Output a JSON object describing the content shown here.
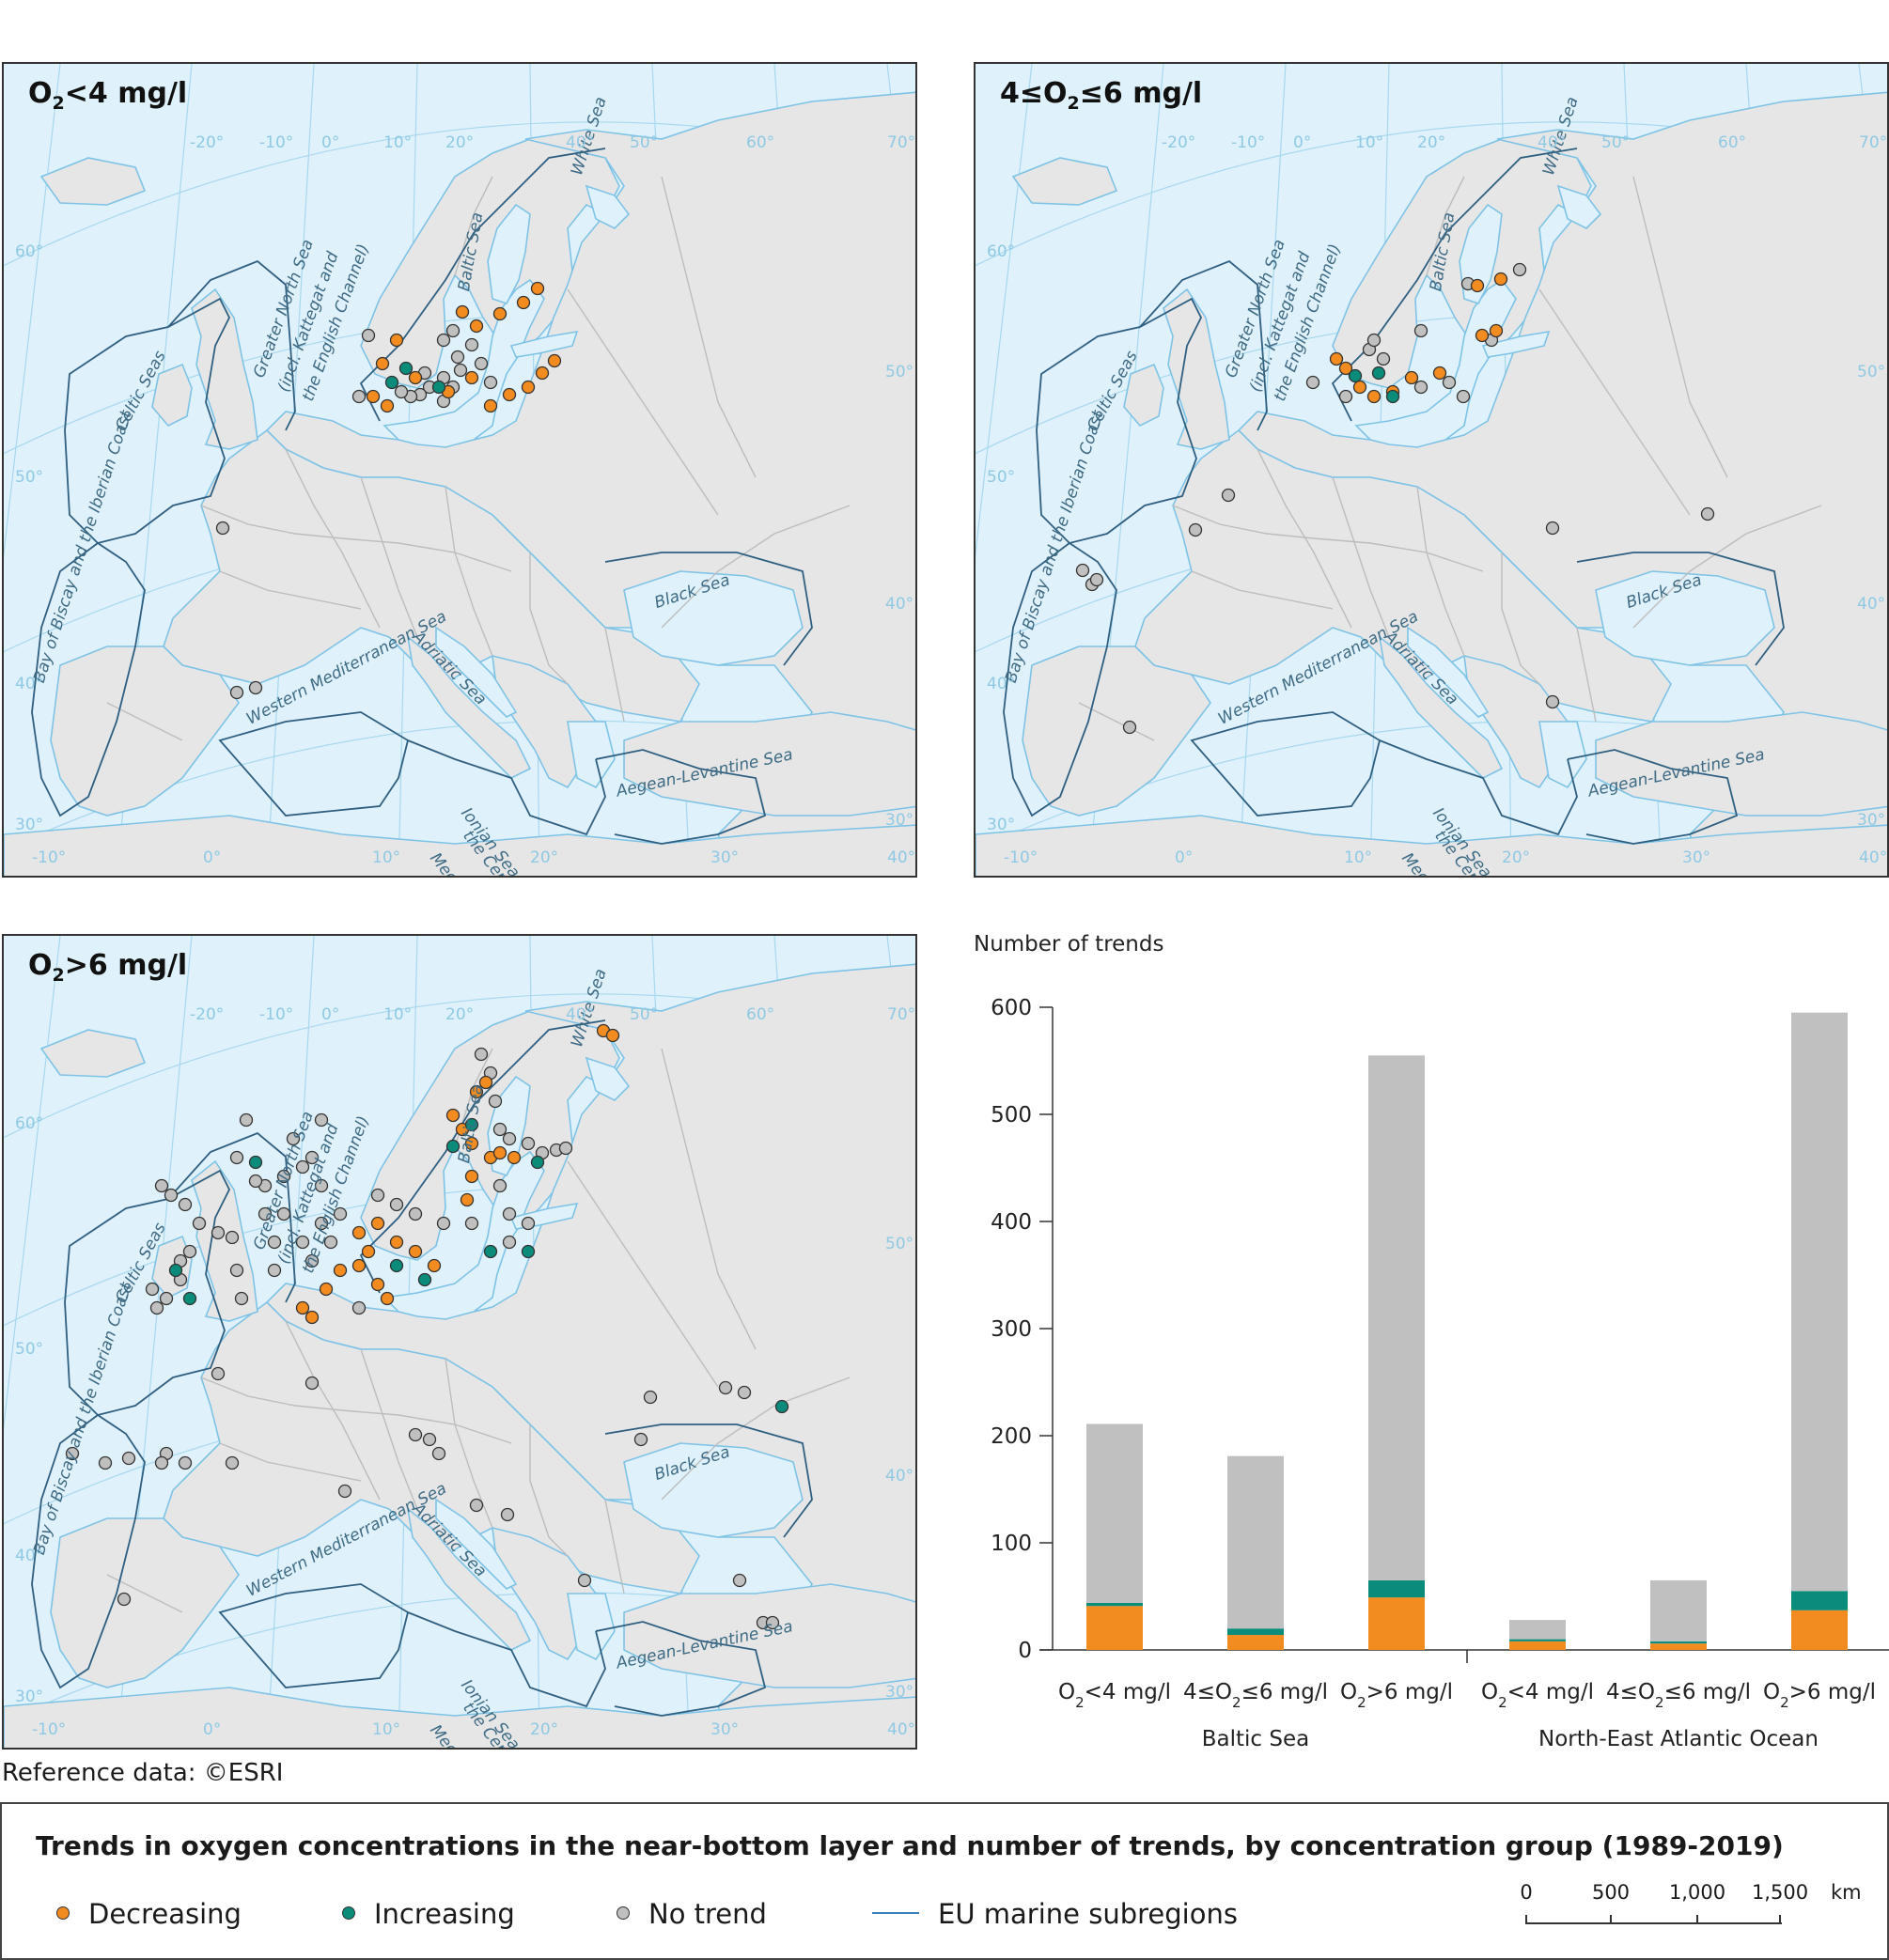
{
  "maps": [
    {
      "id": "map-low",
      "title_main": "O",
      "title_sub": "2",
      "title_rest": "<4 mg/l",
      "points": {
        "decreasing": [
          [
            560,
            410
          ],
          [
            575,
            395
          ],
          [
            588,
            382
          ],
          [
            520,
            430
          ],
          [
            540,
            418
          ],
          [
            505,
            345
          ],
          [
            530,
            332
          ],
          [
            555,
            320
          ],
          [
            570,
            305
          ],
          [
            490,
            330
          ],
          [
            405,
            385
          ],
          [
            395,
            420
          ],
          [
            410,
            430
          ],
          [
            420,
            360
          ],
          [
            440,
            400
          ],
          [
            475,
            415
          ],
          [
            500,
            400
          ]
        ],
        "increasing": [
          [
            430,
            390
          ],
          [
            465,
            410
          ],
          [
            415,
            405
          ]
        ],
        "no_trend": [
          [
            390,
            355
          ],
          [
            480,
            350
          ],
          [
            470,
            360
          ],
          [
            500,
            365
          ],
          [
            455,
            410
          ],
          [
            445,
            418
          ],
          [
            435,
            420
          ],
          [
            450,
            395
          ],
          [
            470,
            400
          ],
          [
            488,
            392
          ],
          [
            520,
            405
          ],
          [
            510,
            385
          ],
          [
            485,
            378
          ],
          [
            480,
            410
          ],
          [
            470,
            425
          ],
          [
            235,
            560
          ],
          [
            250,
            735
          ],
          [
            270,
            730
          ],
          [
            425,
            415
          ],
          [
            380,
            420
          ]
        ]
      }
    },
    {
      "id": "map-mid",
      "title_main": "4≤O",
      "title_sub": "2",
      "title_rest": "≤6 mg/l",
      "points": {
        "decreasing": [
          [
            1430,
            390
          ],
          [
            1445,
            410
          ],
          [
            1460,
            420
          ],
          [
            1420,
            380
          ],
          [
            1480,
            415
          ],
          [
            1500,
            400
          ],
          [
            1530,
            395
          ],
          [
            1575,
            355
          ],
          [
            1590,
            350
          ],
          [
            1570,
            302
          ],
          [
            1595,
            295
          ]
        ],
        "increasing": [
          [
            1440,
            398
          ],
          [
            1465,
            395
          ],
          [
            1480,
            420
          ]
        ],
        "no_trend": [
          [
            1430,
            420
          ],
          [
            1455,
            370
          ],
          [
            1460,
            360
          ],
          [
            1470,
            380
          ],
          [
            1510,
            410
          ],
          [
            1540,
            405
          ],
          [
            1555,
            420
          ],
          [
            1560,
            300
          ],
          [
            1615,
            285
          ],
          [
            1395,
            405
          ],
          [
            1510,
            350
          ],
          [
            1585,
            360
          ],
          [
            1305,
            525
          ],
          [
            1270,
            562
          ],
          [
            1160,
            620
          ],
          [
            1150,
            605
          ],
          [
            1165,
            615
          ],
          [
            1200,
            772
          ],
          [
            1650,
            560
          ],
          [
            1650,
            745
          ],
          [
            1815,
            545
          ]
        ]
      }
    },
    {
      "id": "map-high",
      "title_main": "O",
      "title_sub": "2",
      "title_rest": ">6 mg/l",
      "points": {
        "decreasing": [
          [
            480,
            1185
          ],
          [
            490,
            1200
          ],
          [
            500,
            1215
          ],
          [
            505,
            1160
          ],
          [
            515,
            1150
          ],
          [
            520,
            1230
          ],
          [
            530,
            1225
          ],
          [
            500,
            1250
          ],
          [
            495,
            1275
          ],
          [
            380,
            1310
          ],
          [
            400,
            1300
          ],
          [
            420,
            1320
          ],
          [
            440,
            1330
          ],
          [
            460,
            1345
          ],
          [
            380,
            1345
          ],
          [
            400,
            1365
          ],
          [
            410,
            1380
          ],
          [
            330,
            1400
          ],
          [
            320,
            1390
          ],
          [
            345,
            1370
          ],
          [
            360,
            1350
          ],
          [
            640,
            1095
          ],
          [
            650,
            1100
          ],
          [
            545,
            1230
          ],
          [
            390,
            1330
          ]
        ],
        "increasing": [
          [
            480,
            1218
          ],
          [
            500,
            1195
          ],
          [
            570,
            1235
          ],
          [
            420,
            1345
          ],
          [
            450,
            1360
          ],
          [
            270,
            1235
          ],
          [
            200,
            1380
          ],
          [
            185,
            1350
          ],
          [
            830,
            1495
          ],
          [
            520,
            1330
          ],
          [
            560,
            1330
          ]
        ],
        "no_trend": [
          [
            510,
            1120
          ],
          [
            520,
            1140
          ],
          [
            525,
            1170
          ],
          [
            530,
            1200
          ],
          [
            540,
            1210
          ],
          [
            560,
            1215
          ],
          [
            575,
            1225
          ],
          [
            590,
            1222
          ],
          [
            600,
            1220
          ],
          [
            530,
            1260
          ],
          [
            540,
            1290
          ],
          [
            560,
            1300
          ],
          [
            540,
            1320
          ],
          [
            500,
            1300
          ],
          [
            470,
            1300
          ],
          [
            440,
            1290
          ],
          [
            420,
            1280
          ],
          [
            400,
            1270
          ],
          [
            360,
            1290
          ],
          [
            340,
            1260
          ],
          [
            320,
            1240
          ],
          [
            300,
            1250
          ],
          [
            280,
            1260
          ],
          [
            300,
            1290
          ],
          [
            290,
            1320
          ],
          [
            320,
            1320
          ],
          [
            340,
            1300
          ],
          [
            380,
            1390
          ],
          [
            330,
            1230
          ],
          [
            310,
            1210
          ],
          [
            340,
            1190
          ],
          [
            260,
            1190
          ],
          [
            250,
            1230
          ],
          [
            270,
            1255
          ],
          [
            280,
            1290
          ],
          [
            290,
            1350
          ],
          [
            330,
            1340
          ],
          [
            350,
            1320
          ],
          [
            170,
            1260
          ],
          [
            180,
            1270
          ],
          [
            195,
            1280
          ],
          [
            210,
            1300
          ],
          [
            200,
            1330
          ],
          [
            190,
            1360
          ],
          [
            175,
            1380
          ],
          [
            165,
            1390
          ],
          [
            160,
            1370
          ],
          [
            190,
            1340
          ],
          [
            230,
            1310
          ],
          [
            245,
            1315
          ],
          [
            250,
            1350
          ],
          [
            255,
            1380
          ],
          [
            230,
            1460
          ],
          [
            175,
            1545
          ],
          [
            75,
            1545
          ],
          [
            110,
            1555
          ],
          [
            135,
            1550
          ],
          [
            170,
            1555
          ],
          [
            195,
            1555
          ],
          [
            245,
            1555
          ],
          [
            365,
            1585
          ],
          [
            455,
            1530
          ],
          [
            465,
            1545
          ],
          [
            505,
            1600
          ],
          [
            538,
            1610
          ],
          [
            620,
            1680
          ],
          [
            785,
            1680
          ],
          [
            810,
            1725
          ],
          [
            820,
            1725
          ],
          [
            690,
            1485
          ],
          [
            680,
            1530
          ],
          [
            770,
            1475
          ],
          [
            790,
            1480
          ],
          [
            130,
            1700
          ],
          [
            440,
            1525
          ],
          [
            330,
            1470
          ]
        ]
      }
    }
  ],
  "sea_labels": {
    "celtic": "Celtic Seas",
    "north_sea_1": "Greater North Sea",
    "north_sea_2": "(incl. Kattegat and",
    "north_sea_3": "the English Channel)",
    "biscay": "Bay of Biscay and the Iberian Coast",
    "west_med": "Western Mediterranean Sea",
    "ionian_1": "Ionian Sea and",
    "ionian_2": "the Central",
    "ionian_3": "Mediterranean Sea",
    "aegean": "Aegean-Levantine Sea",
    "adriatic": "Adriatic Sea",
    "black": "Black Sea",
    "baltic": "Baltic Sea",
    "white": "White Sea"
  },
  "graticule": {
    "top": [
      "-20°",
      "-10°",
      "0°",
      "10°",
      "20°",
      "40°",
      "50°",
      "60°",
      "70°"
    ],
    "left": [
      "60°",
      "50°",
      "40°",
      "30°"
    ],
    "bottom": [
      "-10°",
      "0°",
      "10°",
      "20°",
      "30°",
      "40°"
    ],
    "right": [
      "50°",
      "40°",
      "30°"
    ]
  },
  "reference_note": "Reference data: ©ESRI",
  "chart_data": {
    "type": "bar",
    "stacked": true,
    "ylabel": "Number of trends",
    "ylim": [
      0,
      600
    ],
    "yticks": [
      0,
      100,
      200,
      300,
      400,
      500,
      600
    ],
    "groups": [
      "Baltic Sea",
      "North-East Atlantic Ocean"
    ],
    "categories": [
      "O2<4 mg/l",
      "4≤O2≤6 mg/l",
      "O2>6 mg/l",
      "O2<4 mg/l",
      "4≤O2≤6 mg/l",
      "O2>6 mg/l"
    ],
    "category_labels": [
      {
        "pre": "O",
        "sub": "2",
        "post": "<4 mg/l"
      },
      {
        "pre": "4≤O",
        "sub": "2",
        "post": "≤6 mg/l"
      },
      {
        "pre": "O",
        "sub": "2",
        "post": ">6 mg/l"
      },
      {
        "pre": "O",
        "sub": "2",
        "post": "<4 mg/l"
      },
      {
        "pre": "4≤O",
        "sub": "2",
        "post": "≤6 mg/l"
      },
      {
        "pre": "O",
        "sub": "2",
        "post": ">6 mg/l"
      }
    ],
    "series": [
      {
        "name": "Decreasing",
        "color": "#f28b20",
        "values": [
          41,
          14,
          49,
          8,
          6,
          37
        ]
      },
      {
        "name": "Increasing",
        "color": "#0b8b7a",
        "values": [
          3,
          6,
          16,
          2,
          2,
          18
        ]
      },
      {
        "name": "No trend",
        "color": "#c0c0c0",
        "values": [
          167,
          161,
          490,
          18,
          57,
          540
        ]
      }
    ],
    "title": "Trends in oxygen concentrations in the near-bottom layer and number of trends, by concentration group (1989-2019)"
  },
  "legend": {
    "title": "Trends in oxygen concentrations in the near-bottom layer and number of trends, by concentration group (1989-2019)",
    "items": [
      {
        "label": "Decreasing",
        "color": "#f28b20"
      },
      {
        "label": "Increasing",
        "color": "#0b8b7a"
      },
      {
        "label": "No trend",
        "color": "#c0c0c0"
      },
      {
        "label": "EU marine subregions",
        "color": "#3a7fb5"
      }
    ],
    "scale": {
      "ticks": [
        "0",
        "500",
        "1,000",
        "1,500"
      ],
      "unit": "km"
    }
  },
  "colors": {
    "sea": "#dff1fb",
    "land": "#e6e6e6",
    "border": "#bdbdbd",
    "coast": "#7ec3e6",
    "subregion": "#2f5f80",
    "graticule": "#a8d8ee"
  }
}
